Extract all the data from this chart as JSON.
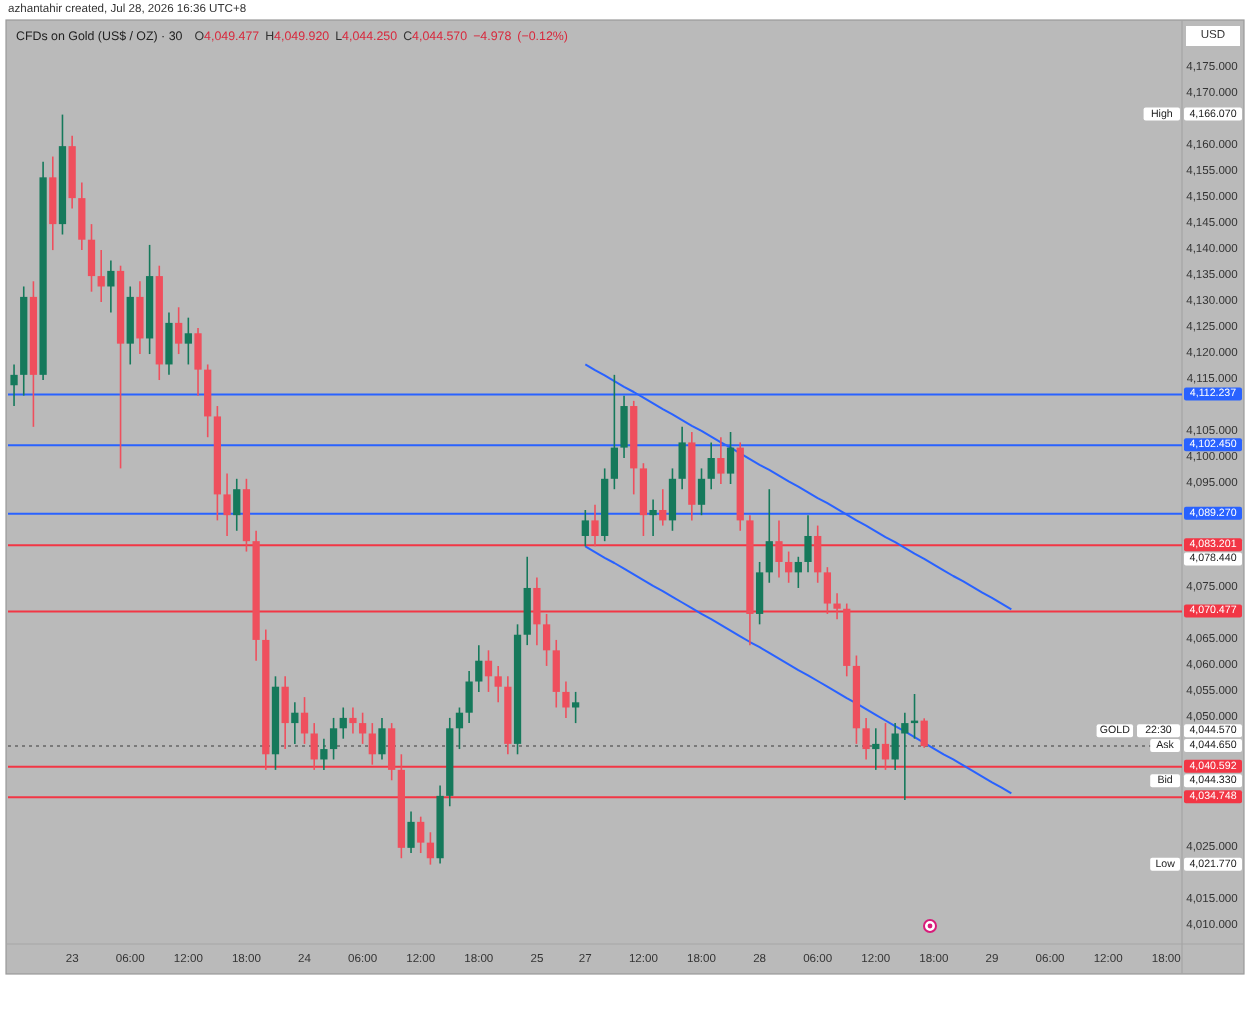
{
  "chart_data": {
    "type": "candlestick",
    "title": "CFDs on Gold (US$ / OZ) · 30",
    "subtitle": "O4,049.477 H4,049.920 L4,044.250 C4,044.570 −4.978 (−0.12%)",
    "categories": [
      null,
      null,
      null,
      null,
      null,
      null,
      "23",
      null,
      null,
      null,
      null,
      null,
      "06:00",
      null,
      null,
      null,
      null,
      null,
      "12:00",
      null,
      null,
      null,
      null,
      null,
      "18:00",
      null,
      null,
      null,
      null,
      null,
      "24",
      null,
      null,
      null,
      null,
      null,
      "06:00",
      null,
      null,
      null,
      null,
      null,
      "12:00",
      null,
      null,
      null,
      null,
      null,
      "18:00",
      null,
      null,
      null,
      null,
      null,
      "25",
      null,
      null,
      null,
      null,
      "27",
      null,
      null,
      null,
      null,
      null,
      "12:00",
      null,
      null,
      null,
      null,
      null,
      "18:00",
      null,
      null,
      null,
      null,
      null,
      "28",
      null,
      null,
      null,
      null,
      null,
      "06:00",
      null,
      null,
      null,
      null,
      null,
      "12:00",
      null,
      null,
      null,
      null,
      null,
      "18:00",
      null,
      null,
      null,
      null,
      null,
      "29",
      null,
      null,
      null,
      null,
      null,
      "06:00",
      null,
      null,
      null,
      null,
      null,
      "12:00",
      null,
      null,
      null,
      null,
      null,
      "18:00",
      null
    ],
    "ohlc": [
      [
        4114,
        4118,
        4110,
        4116
      ],
      [
        4116,
        4133,
        4112,
        4131
      ],
      [
        4131,
        4134,
        4106,
        4116
      ],
      [
        4116,
        4157,
        4115,
        4154
      ],
      [
        4154,
        4158,
        4140,
        4145
      ],
      [
        4145,
        4166.07,
        4143,
        4160
      ],
      [
        4160,
        4162,
        4148,
        4150
      ],
      [
        4150,
        4153,
        4140,
        4142
      ],
      [
        4142,
        4145,
        4132,
        4135
      ],
      [
        4135,
        4140,
        4130,
        4133
      ],
      [
        4133,
        4138,
        4128,
        4136
      ],
      [
        4136,
        4137,
        4098,
        4122
      ],
      [
        4122,
        4133,
        4118,
        4131
      ],
      [
        4131,
        4134,
        4120,
        4123
      ],
      [
        4123,
        4141,
        4120,
        4135
      ],
      [
        4135,
        4137,
        4115,
        4118
      ],
      [
        4118,
        4128,
        4116,
        4126
      ],
      [
        4126,
        4129,
        4120,
        4122
      ],
      [
        4122,
        4127,
        4118,
        4124
      ],
      [
        4124,
        4125,
        4112,
        4117
      ],
      [
        4117,
        4118,
        4104,
        4108
      ],
      [
        4108,
        4110,
        4088,
        4093
      ],
      [
        4093,
        4097,
        4085,
        4089
      ],
      [
        4089,
        4096,
        4086,
        4094
      ],
      [
        4094,
        4096,
        4082,
        4084
      ],
      [
        4084,
        4086,
        4061,
        4065
      ],
      [
        4065,
        4067,
        4040,
        4043
      ],
      [
        4043,
        4058,
        4040,
        4056
      ],
      [
        4056,
        4058,
        4044,
        4049
      ],
      [
        4049,
        4053,
        4045,
        4051
      ],
      [
        4051,
        4054,
        4045,
        4047
      ],
      [
        4047,
        4049,
        4040,
        4042
      ],
      [
        4042,
        4046,
        4040,
        4044
      ],
      [
        4044,
        4050,
        4042,
        4048
      ],
      [
        4048,
        4052,
        4046,
        4050
      ],
      [
        4050,
        4052,
        4047,
        4049
      ],
      [
        4049,
        4051,
        4045,
        4047
      ],
      [
        4047,
        4049,
        4041,
        4043
      ],
      [
        4043,
        4050,
        4042,
        4048
      ],
      [
        4048,
        4049,
        4038,
        4040
      ],
      [
        4040,
        4043,
        4023,
        4025
      ],
      [
        4025,
        4032,
        4024,
        4030
      ],
      [
        4030,
        4031,
        4024,
        4026
      ],
      [
        4026,
        4028,
        4021.77,
        4023
      ],
      [
        4023,
        4037,
        4022,
        4035
      ],
      [
        4035,
        4050,
        4033,
        4048
      ],
      [
        4048,
        4052,
        4044,
        4051
      ],
      [
        4051,
        4059,
        4049,
        4057
      ],
      [
        4057,
        4064,
        4055,
        4061
      ],
      [
        4061,
        4063,
        4055,
        4058
      ],
      [
        4058,
        4060,
        4053,
        4056
      ],
      [
        4056,
        4058,
        4043,
        4045
      ],
      [
        4045,
        4068,
        4043,
        4066
      ],
      [
        4066,
        4081,
        4064,
        4075
      ],
      [
        4075,
        4077,
        4064,
        4068
      ],
      [
        4068,
        4070,
        4060,
        4063
      ],
      [
        4063,
        4065,
        4052,
        4055
      ],
      [
        4055,
        4057,
        4050,
        4052
      ],
      [
        4052,
        4055,
        4049,
        4053
      ],
      [
        4085,
        4090,
        4083,
        4088
      ],
      [
        4088,
        4091,
        4083,
        4085
      ],
      [
        4085,
        4098,
        4084,
        4096
      ],
      [
        4096,
        4116,
        4094,
        4102
      ],
      [
        4102,
        4112,
        4100,
        4110
      ],
      [
        4110,
        4111,
        4093,
        4098
      ],
      [
        4098,
        4099,
        4085,
        4089
      ],
      [
        4089,
        4092,
        4085,
        4090
      ],
      [
        4090,
        4094,
        4087,
        4088
      ],
      [
        4088,
        4098,
        4086,
        4096
      ],
      [
        4096,
        4106,
        4094,
        4103
      ],
      [
        4103,
        4105,
        4088,
        4091
      ],
      [
        4091,
        4098,
        4089,
        4096
      ],
      [
        4096,
        4103,
        4094,
        4100
      ],
      [
        4100,
        4104,
        4095,
        4097
      ],
      [
        4097,
        4105,
        4095,
        4102
      ],
      [
        4102,
        4103,
        4086,
        4088
      ],
      [
        4088,
        4089,
        4064,
        4070
      ],
      [
        4070,
        4080,
        4068,
        4078
      ],
      [
        4078,
        4094,
        4076,
        4084
      ],
      [
        4084,
        4088,
        4077,
        4080
      ],
      [
        4080,
        4082,
        4076,
        4078
      ],
      [
        4078,
        4081,
        4075,
        4080
      ],
      [
        4080,
        4089,
        4078,
        4085
      ],
      [
        4085,
        4087,
        4076,
        4078
      ],
      [
        4078,
        4079,
        4070,
        4072
      ],
      [
        4072,
        4074,
        4069,
        4071
      ],
      [
        4071,
        4072,
        4058,
        4060
      ],
      [
        4060,
        4062,
        4045,
        4048
      ],
      [
        4048,
        4050,
        4042,
        4044
      ],
      [
        4044,
        4048,
        4040,
        4045
      ],
      [
        4045,
        4049,
        4040,
        4042
      ],
      [
        4042,
        4049,
        4040,
        4047
      ],
      [
        4047,
        4051,
        4034.2,
        4049
      ],
      [
        4049,
        4054.6,
        4046,
        4049.477
      ],
      [
        4049.477,
        4049.92,
        4044.25,
        4044.57
      ],
      null,
      null,
      null,
      null,
      null,
      null,
      null,
      null,
      null,
      null,
      null,
      null,
      null,
      null,
      null,
      null,
      null,
      null,
      null,
      null,
      null,
      null,
      null,
      null,
      null,
      null
    ],
    "colors": [
      "#15795b",
      "#15795b",
      "#ef4f5d",
      "#15795b",
      "#ef4f5d",
      "#15795b",
      "#ef4f5d",
      "#ef4f5d",
      "#ef4f5d",
      "#ef4f5d",
      "#15795b",
      "#ef4f5d",
      "#15795b",
      "#ef4f5d",
      "#15795b",
      "#ef4f5d",
      "#15795b",
      "#ef4f5d",
      "#15795b",
      "#ef4f5d",
      "#ef4f5d",
      "#ef4f5d",
      "#ef4f5d",
      "#15795b",
      "#ef4f5d",
      "#ef4f5d",
      "#ef4f5d",
      "#15795b",
      "#ef4f5d",
      "#15795b",
      "#ef4f5d",
      "#ef4f5d",
      "#15795b",
      "#15795b",
      "#15795b",
      "#ef4f5d",
      "#ef4f5d",
      "#ef4f5d",
      "#15795b",
      "#ef4f5d",
      "#ef4f5d",
      "#15795b",
      "#ef4f5d",
      "#ef4f5d",
      "#15795b",
      "#15795b",
      "#15795b",
      "#15795b",
      "#15795b",
      "#ef4f5d",
      "#ef4f5d",
      "#ef4f5d",
      "#15795b",
      "#15795b",
      "#ef4f5d",
      "#ef4f5d",
      "#ef4f5d",
      "#ef4f5d",
      "#15795b",
      "#15795b",
      "#ef4f5d",
      "#15795b",
      "#15795b",
      "#15795b",
      "#ef4f5d",
      "#ef4f5d",
      "#15795b",
      "#ef4f5d",
      "#15795b",
      "#15795b",
      "#ef4f5d",
      "#15795b",
      "#15795b",
      "#ef4f5d",
      "#15795b",
      "#ef4f5d",
      "#ef4f5d",
      "#15795b",
      "#15795b",
      "#ef4f5d",
      "#ef4f5d",
      "#15795b",
      "#15795b",
      "#ef4f5d",
      "#ef4f5d",
      "#ef4f5d",
      "#ef4f5d",
      "#ef4f5d",
      "#ef4f5d",
      "#15795b",
      "#ef4f5d",
      "#15795b",
      "#15795b",
      "#15795b",
      "#ef4f5d",
      null,
      null,
      null,
      null,
      null,
      null,
      null,
      null,
      null,
      null,
      null,
      null,
      null,
      null,
      null,
      null,
      null,
      null,
      null,
      null,
      null,
      null,
      null,
      null,
      null,
      null
    ],
    "series": [
      {
        "type": "line",
        "color": "#2962ff",
        "values": [
          null,
          null,
          null,
          null,
          null,
          null,
          null,
          null,
          null,
          null,
          null,
          null,
          null,
          null,
          null,
          null,
          null,
          null,
          null,
          null,
          null,
          null,
          null,
          null,
          null,
          null,
          null,
          null,
          null,
          null,
          null,
          null,
          null,
          null,
          null,
          null,
          null,
          null,
          null,
          null,
          null,
          null,
          null,
          null,
          null,
          null,
          null,
          null,
          null,
          null,
          null,
          null,
          null,
          null,
          null,
          null,
          null,
          null,
          null,
          4118,
          4116.9,
          4115.9,
          4114.8,
          4113.7,
          4112.7,
          4111.6,
          4110.5,
          4109.4,
          4108.4,
          4107.3,
          4106.2,
          4105.2,
          4104.1,
          4103,
          4102,
          4100.9,
          4099.8,
          4098.7,
          4097.7,
          4096.6,
          4095.5,
          4094.5,
          4093.4,
          4092.3,
          4091.3,
          4090.2,
          4089.1,
          4088,
          4087,
          4085.9,
          4084.8,
          4083.8,
          4082.7,
          4081.6,
          4080.6,
          4079.5,
          4078.4,
          4077.3,
          4076.3,
          4075.2,
          4074.1,
          4073.1,
          4072,
          4070.9,
          null,
          null,
          null,
          null,
          null,
          null,
          null,
          null,
          null,
          null,
          null,
          null,
          null,
          null,
          null,
          null,
          null
        ]
      },
      {
        "type": "line",
        "color": "#2962ff",
        "values": [
          null,
          null,
          null,
          null,
          null,
          null,
          null,
          null,
          null,
          null,
          null,
          null,
          null,
          null,
          null,
          null,
          null,
          null,
          null,
          null,
          null,
          null,
          null,
          null,
          null,
          null,
          null,
          null,
          null,
          null,
          null,
          null,
          null,
          null,
          null,
          null,
          null,
          null,
          null,
          null,
          null,
          null,
          null,
          null,
          null,
          null,
          null,
          null,
          null,
          null,
          null,
          null,
          null,
          null,
          null,
          null,
          null,
          null,
          null,
          4083,
          4081.9,
          4080.8,
          4079.8,
          4078.7,
          4077.6,
          4076.5,
          4075.4,
          4074.4,
          4073.3,
          4072.2,
          4071.1,
          4070,
          4069,
          4067.9,
          4066.8,
          4065.7,
          4064.6,
          4063.6,
          4062.5,
          4061.4,
          4060.3,
          4059.2,
          4058.2,
          4057.1,
          4056,
          4054.9,
          4053.8,
          4052.8,
          4051.7,
          4050.6,
          4049.5,
          4048.4,
          4047.4,
          4046.3,
          4045.2,
          4044.1,
          4043,
          4042,
          4040.9,
          4039.8,
          4038.7,
          4037.6,
          4036.6,
          4035.5,
          null,
          null,
          null,
          null,
          null,
          null,
          null,
          null,
          null,
          null,
          null,
          null,
          null,
          null,
          null,
          null,
          null
        ]
      }
    ],
    "ylim": [
      4006.5,
      4183.5
    ],
    "yticks": [
      {
        "value": 4010,
        "label": "4,010.000"
      },
      {
        "value": 4015,
        "label": "4,015.000"
      },
      {
        "value": 4025,
        "label": "4,025.000"
      },
      {
        "value": 4050,
        "label": "4,050.000"
      },
      {
        "value": 4055,
        "label": "4,055.000"
      },
      {
        "value": 4060,
        "label": "4,060.000"
      },
      {
        "value": 4065,
        "label": "4,065.000"
      },
      {
        "value": 4075,
        "label": "4,075.000"
      },
      {
        "value": 4095,
        "label": "4,095.000"
      },
      {
        "value": 4100,
        "label": "4,100.000"
      },
      {
        "value": 4105,
        "label": "4,105.000"
      },
      {
        "value": 4115,
        "label": "4,115.000"
      },
      {
        "value": 4120,
        "label": "4,120.000"
      },
      {
        "value": 4125,
        "label": "4,125.000"
      },
      {
        "value": 4130,
        "label": "4,130.000"
      },
      {
        "value": 4135,
        "label": "4,135.000"
      },
      {
        "value": 4140,
        "label": "4,140.000"
      },
      {
        "value": 4145,
        "label": "4,145.000"
      },
      {
        "value": 4150,
        "label": "4,150.000"
      },
      {
        "value": 4155,
        "label": "4,155.000"
      },
      {
        "value": 4160,
        "label": "4,160.000"
      },
      {
        "value": 4170,
        "label": "4,170.000"
      },
      {
        "value": 4175,
        "label": "4,175.000"
      }
    ],
    "ref_lines": [
      {
        "axis": "y",
        "value": 4112.237,
        "label": "4,112.237",
        "color": "#2962ff"
      },
      {
        "axis": "y",
        "value": 4102.45,
        "label": "4,102.450",
        "color": "#2962ff"
      },
      {
        "axis": "y",
        "value": 4089.27,
        "label": "4,089.270",
        "color": "#2962ff"
      },
      {
        "axis": "y",
        "value": 4083.201,
        "label": "4,083.201",
        "color": "#f23645"
      },
      {
        "axis": "y",
        "value": 4070.477,
        "label": "4,070.477",
        "color": "#f23645"
      },
      {
        "axis": "y",
        "value": 4040.592,
        "label": "4,040.592",
        "color": "#f23645"
      },
      {
        "axis": "y",
        "value": 4034.748,
        "label": "4,034.748",
        "color": "#f23645"
      },
      {
        "axis": "y",
        "value": 4044.57,
        "color": "#7a7a7a",
        "line_style": "dotted"
      }
    ],
    "annotations": [
      "azhantahir created, Jul 28, 2026 16:36 UTC+8",
      "USD",
      "High",
      "4,166.070",
      "Low",
      "4,021.770",
      "4,078.440",
      "Ask",
      "4,044.650",
      "GOLD",
      "22:30",
      "4,044.570",
      "Bid",
      "4,044.330"
    ]
  }
}
